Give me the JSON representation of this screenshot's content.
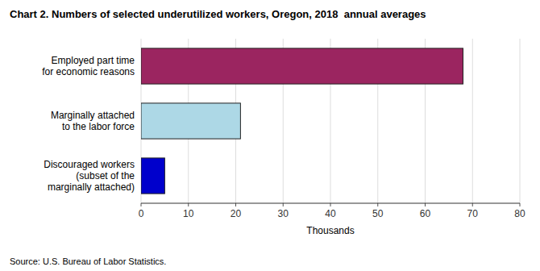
{
  "chart_data": {
    "type": "bar",
    "orientation": "horizontal",
    "title": "Chart 2. Numbers of selected underutilized workers, Oregon, 2018  annual averages",
    "categories": [
      "Discouraged workers\n(subset of the\nmarginally attached)",
      "Marginally attached\nto the labor force",
      "Employed part time\nfor economic reasons"
    ],
    "values": [
      5,
      21,
      68
    ],
    "colors": [
      "#0000cc",
      "#add8e6",
      "#9b2560"
    ],
    "xlabel": "Thousands",
    "xlim": [
      0,
      80
    ],
    "xticks": [
      0,
      10,
      20,
      30,
      40,
      50,
      60,
      70,
      80
    ],
    "grid": true,
    "source": "Source: U.S. Bureau of Labor Statistics."
  }
}
